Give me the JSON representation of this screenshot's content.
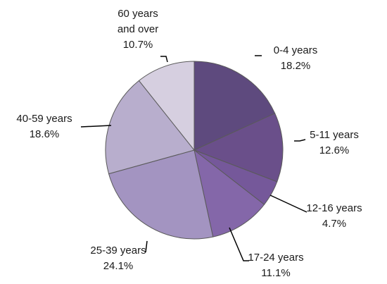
{
  "chart_data": {
    "type": "pie",
    "title": "",
    "slices": [
      {
        "label_lines": [
          "0-4 years"
        ],
        "value_label": "18.2%",
        "value": 18.2,
        "color": "#5e4a7e"
      },
      {
        "label_lines": [
          "5-11 years"
        ],
        "value_label": "12.6%",
        "value": 12.6,
        "color": "#6a4f8a"
      },
      {
        "label_lines": [
          "12-16 years"
        ],
        "value_label": "4.7%",
        "value": 4.7,
        "color": "#75589a"
      },
      {
        "label_lines": [
          "17-24 years"
        ],
        "value_label": "11.1%",
        "value": 11.1,
        "color": "#8467a9"
      },
      {
        "label_lines": [
          "25-39 years"
        ],
        "value_label": "24.1%",
        "value": 24.1,
        "color": "#a394c1"
      },
      {
        "label_lines": [
          "40-59 years"
        ],
        "value_label": "18.6%",
        "value": 18.6,
        "color": "#b8aecd"
      },
      {
        "label_lines": [
          "60 years",
          "and over"
        ],
        "value_label": "10.7%",
        "value": 10.7,
        "color": "#d6cfe0"
      }
    ]
  }
}
